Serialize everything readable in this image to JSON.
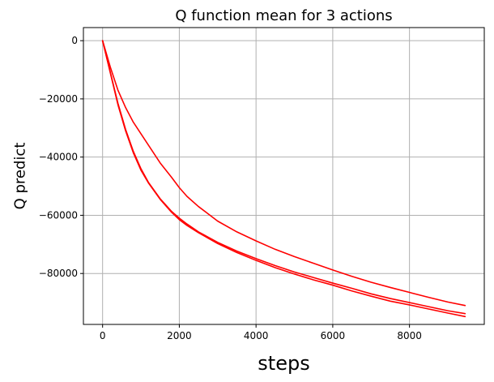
{
  "chart_data": {
    "type": "line",
    "title": "Q function mean for 3 actions",
    "xlabel": "steps",
    "ylabel": "Q predict",
    "xlim": [
      -500,
      9950
    ],
    "ylim": [
      -97500,
      4500
    ],
    "xticks": [
      0,
      2000,
      4000,
      6000,
      8000
    ],
    "xtick_labels": [
      "0",
      "2000",
      "4000",
      "6000",
      "8000"
    ],
    "yticks": [
      0,
      -20000,
      -40000,
      -60000,
      -80000
    ],
    "ytick_labels": [
      "0",
      "−20000",
      "−40000",
      "−60000",
      "−80000"
    ],
    "grid": true,
    "series_color": "#ff0000",
    "series": [
      {
        "x": [
          0,
          200,
          400,
          600,
          800,
          1000,
          1200,
          1500,
          1800,
          2000,
          2200,
          2500,
          3000,
          3500,
          4000,
          4500,
          5000,
          5500,
          6000,
          6500,
          7000,
          7500,
          8000,
          8500,
          9000,
          9450
        ],
        "values": [
          0,
          -9000,
          -17000,
          -23000,
          -28000,
          -32000,
          -36000,
          -42000,
          -47000,
          -50500,
          -53500,
          -57000,
          -62000,
          -65700,
          -68800,
          -71700,
          -74200,
          -76500,
          -78800,
          -81000,
          -83000,
          -84800,
          -86500,
          -88200,
          -89800,
          -91000
        ]
      },
      {
        "x": [
          0,
          200,
          400,
          600,
          800,
          1000,
          1200,
          1500,
          1800,
          2000,
          2200,
          2500,
          3000,
          3500,
          4000,
          4500,
          5000,
          5500,
          6000,
          6500,
          7000,
          7500,
          8000,
          8500,
          9000,
          9450
        ],
        "values": [
          0,
          -11000,
          -22000,
          -31000,
          -38500,
          -44500,
          -49000,
          -54500,
          -59000,
          -61500,
          -63500,
          -66000,
          -69700,
          -72800,
          -75500,
          -78000,
          -80200,
          -82200,
          -84000,
          -86000,
          -87800,
          -89500,
          -90800,
          -92200,
          -93600,
          -94800
        ]
      },
      {
        "x": [
          0,
          200,
          400,
          600,
          800,
          1000,
          1200,
          1500,
          1800,
          2000,
          2200,
          2500,
          3000,
          3500,
          4000,
          4500,
          5000,
          5500,
          6000,
          6500,
          7000,
          7500,
          8000,
          8500,
          9000,
          9450
        ],
        "values": [
          0,
          -10800,
          -21500,
          -30500,
          -38000,
          -44000,
          -48800,
          -54300,
          -58700,
          -61000,
          -63000,
          -65700,
          -69300,
          -72300,
          -74900,
          -77300,
          -79500,
          -81400,
          -83300,
          -85100,
          -87000,
          -88600,
          -90000,
          -91400,
          -92800,
          -93800
        ]
      }
    ]
  }
}
